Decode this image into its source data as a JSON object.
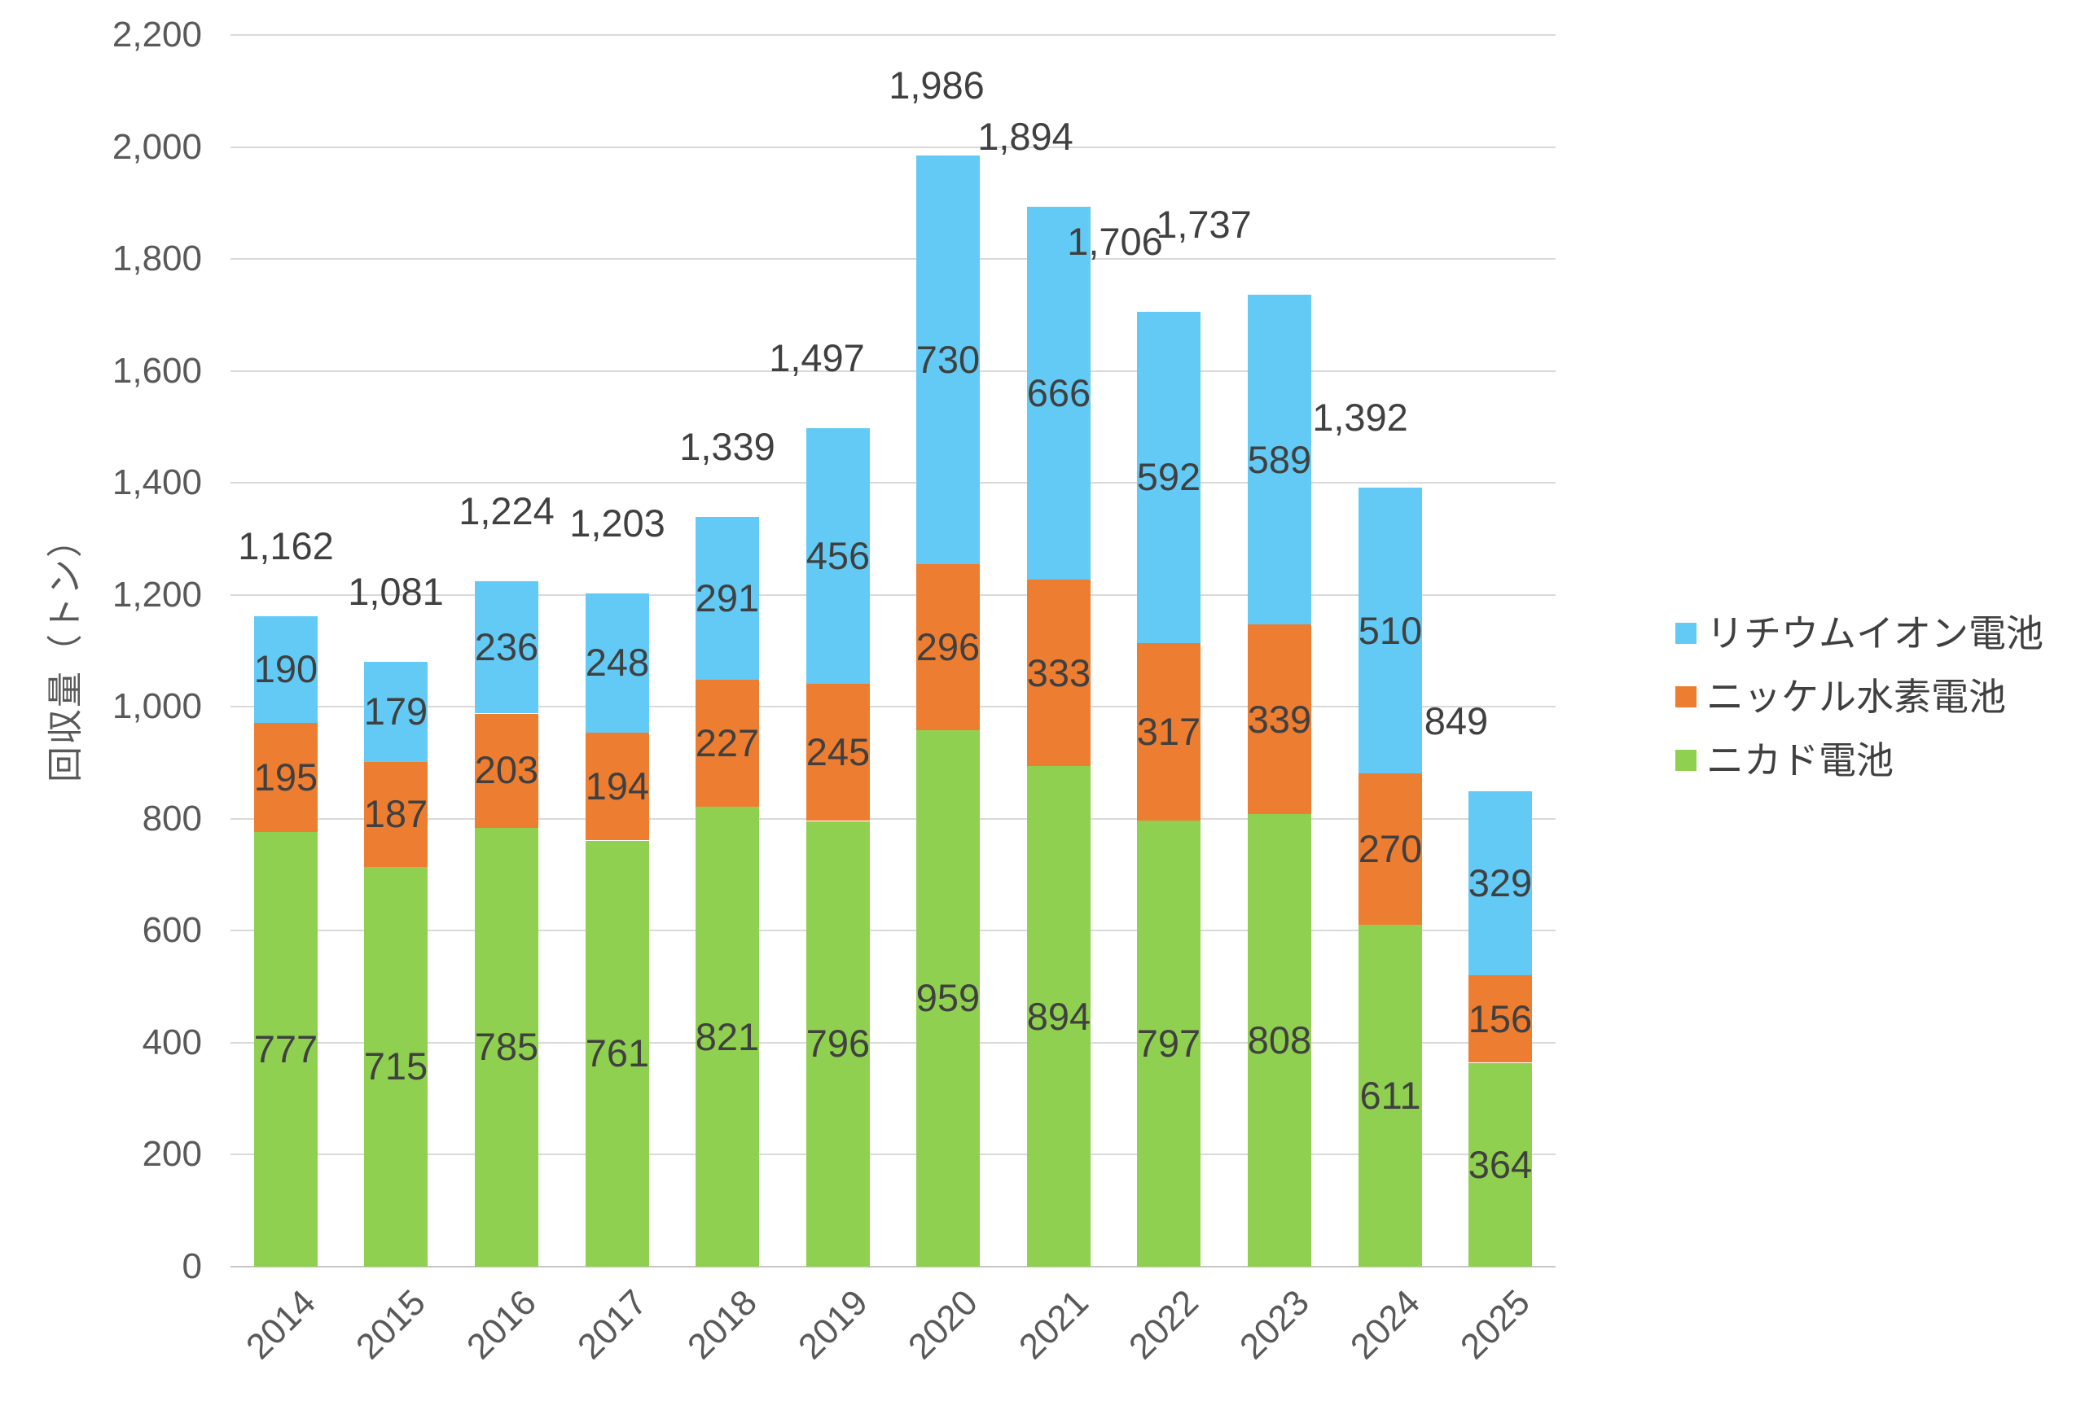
{
  "chart_data": {
    "type": "bar",
    "stacked": true,
    "title": "",
    "xlabel": "",
    "ylabel": "回収量（トン）",
    "ylim": [
      0,
      2200
    ],
    "ytick_step": 200,
    "ytick_labels": [
      "0",
      "200",
      "400",
      "600",
      "800",
      "1,000",
      "1,200",
      "1,400",
      "1,600",
      "1,800",
      "2,000",
      "2,200"
    ],
    "grid": true,
    "legend_position": "right",
    "categories": [
      "2014",
      "2015",
      "2016",
      "2017",
      "2018",
      "2019",
      "2020",
      "2021",
      "2022",
      "2023",
      "2024",
      "2025"
    ],
    "series": [
      {
        "name": "ニカド電池",
        "color": "#90D050",
        "values": [
          777,
          715,
          785,
          761,
          821,
          796,
          959,
          894,
          797,
          808,
          611,
          364
        ]
      },
      {
        "name": "ニッケル水素電池",
        "color": "#ED7D31",
        "values": [
          195,
          187,
          203,
          194,
          227,
          245,
          296,
          333,
          317,
          339,
          270,
          156
        ]
      },
      {
        "name": "リチウムイオン電池",
        "color": "#62CAF5",
        "values": [
          190,
          179,
          236,
          248,
          291,
          456,
          730,
          666,
          592,
          589,
          510,
          329
        ]
      }
    ],
    "total_labels": [
      "1,162",
      "1,081",
      "1,224",
      "1,203",
      "1,339",
      "1,497",
      "1,986",
      "1,894",
      "1,706",
      "1,737",
      "1,392",
      "849"
    ],
    "legend": [
      {
        "label": "リチウムイオン電池",
        "color": "#62CAF5"
      },
      {
        "label": "ニッケル水素電池",
        "color": "#ED7D31"
      },
      {
        "label": "ニカド電池",
        "color": "#90D050"
      }
    ],
    "colors": {
      "label_text": "#404040",
      "axis_text": "#595959",
      "gridline": "#D9D9D9",
      "background": "#FFFFFF"
    }
  }
}
